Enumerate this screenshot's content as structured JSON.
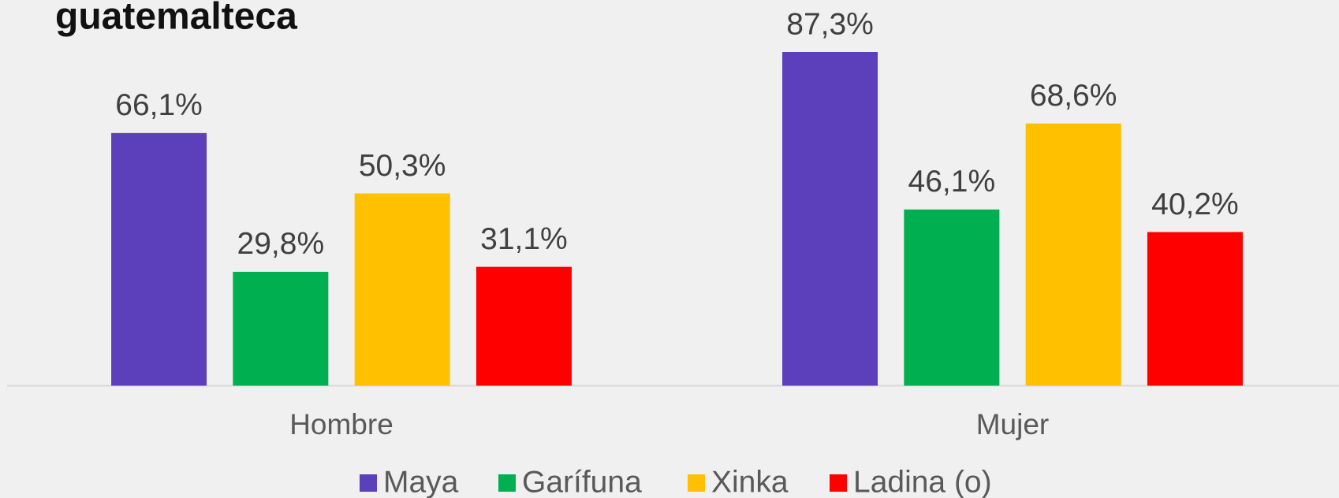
{
  "chart_data": {
    "type": "bar",
    "title": "guatemalteca",
    "categories": [
      "Hombre",
      "Mujer"
    ],
    "series": [
      {
        "name": "Maya",
        "color": "#5b3fbb",
        "values": [
          66.1,
          87.3
        ],
        "value_labels": [
          "66,1%",
          "87,3%"
        ]
      },
      {
        "name": "Garífuna",
        "color": "#00b050",
        "values": [
          29.8,
          46.1
        ],
        "value_labels": [
          "29,8%",
          "46,1%"
        ]
      },
      {
        "name": "Xinka",
        "color": "#ffc000",
        "values": [
          50.3,
          68.6
        ],
        "value_labels": [
          "50,3%",
          "68,6%"
        ]
      },
      {
        "name": "Ladina (o)",
        "color": "#ff0000",
        "values": [
          31.1,
          40.2
        ],
        "value_labels": [
          "31,1%",
          "40,2%"
        ]
      }
    ],
    "legend": "bottom"
  }
}
